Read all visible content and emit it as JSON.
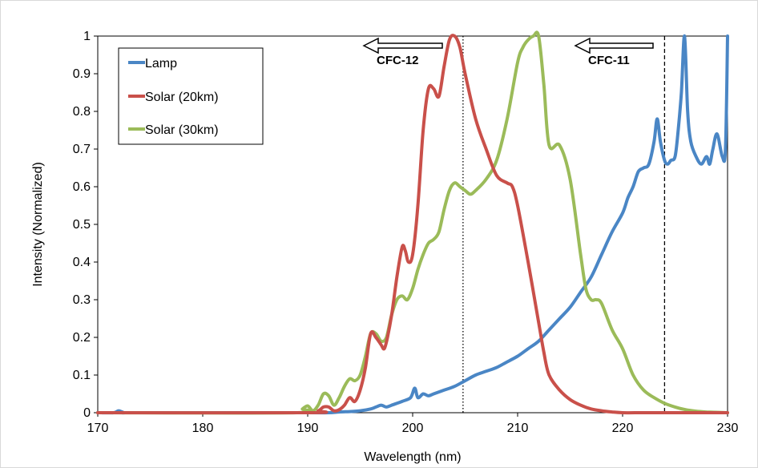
{
  "chart_data": {
    "type": "line",
    "xlabel": "Wavelength (nm)",
    "ylabel": "Intensity (Normalized)",
    "xlim": [
      170,
      230
    ],
    "ylim": [
      0,
      1
    ],
    "x_ticks": [
      "170",
      "180",
      "190",
      "200",
      "210",
      "220",
      "230"
    ],
    "y_ticks": [
      "0",
      "0.1",
      "0.2",
      "0.3",
      "0.4",
      "0.5",
      "0.6",
      "0.7",
      "0.8",
      "0.9",
      "1"
    ],
    "grid": false,
    "legend": "top-left",
    "series": [
      {
        "name": "Lamp",
        "color": "#4a86c5",
        "x": [
          170,
          171.5,
          172,
          172.5,
          173,
          180,
          190,
          192,
          193,
          194,
          195,
          196,
          196.5,
          197,
          197.5,
          198,
          199,
          199.8,
          200.2,
          200.5,
          201,
          201.5,
          202,
          203,
          204,
          205,
          206,
          207,
          208,
          209,
          210,
          211,
          212,
          213,
          214,
          215,
          216,
          217,
          218,
          219,
          220,
          220.5,
          221,
          221.5,
          222,
          222.5,
          223,
          223.3,
          223.6,
          224,
          224.3,
          224.6,
          225,
          225.3,
          225.6,
          225.9,
          226.2,
          226.5,
          227,
          227.5,
          228,
          228.3,
          228.6,
          229,
          229.5,
          229.8,
          230
        ],
        "values": [
          0,
          0,
          0.005,
          0,
          0,
          0,
          0,
          0,
          0.002,
          0.003,
          0.005,
          0.01,
          0.015,
          0.02,
          0.015,
          0.02,
          0.03,
          0.04,
          0.065,
          0.04,
          0.05,
          0.045,
          0.05,
          0.06,
          0.07,
          0.085,
          0.1,
          0.11,
          0.12,
          0.135,
          0.15,
          0.17,
          0.19,
          0.22,
          0.25,
          0.28,
          0.32,
          0.36,
          0.42,
          0.48,
          0.53,
          0.57,
          0.6,
          0.64,
          0.65,
          0.66,
          0.72,
          0.78,
          0.72,
          0.67,
          0.66,
          0.67,
          0.68,
          0.75,
          0.85,
          1.0,
          0.8,
          0.72,
          0.68,
          0.66,
          0.68,
          0.66,
          0.7,
          0.74,
          0.68,
          0.7,
          1.0
        ]
      },
      {
        "name": "Solar (20km)",
        "color": "#c9504a",
        "x": [
          170,
          190,
          191,
          191.5,
          192,
          192.5,
          193,
          193.5,
          194,
          194.5,
          195,
          195.5,
          196,
          196.5,
          197,
          197.3,
          197.6,
          198,
          198.5,
          199,
          199.3,
          199.6,
          200,
          200.5,
          201,
          201.5,
          202,
          202.5,
          203,
          203.5,
          204,
          204.5,
          205,
          206,
          207,
          208,
          209,
          209.5,
          210,
          211,
          212,
          212.5,
          213,
          214,
          215,
          216,
          217,
          218,
          219,
          220,
          222,
          225,
          230
        ],
        "values": [
          0,
          0,
          0.005,
          0.015,
          0.015,
          0.005,
          0.008,
          0.02,
          0.04,
          0.03,
          0.06,
          0.12,
          0.21,
          0.2,
          0.18,
          0.17,
          0.2,
          0.26,
          0.36,
          0.44,
          0.43,
          0.4,
          0.42,
          0.55,
          0.75,
          0.86,
          0.86,
          0.84,
          0.92,
          0.99,
          1.0,
          0.97,
          0.9,
          0.78,
          0.7,
          0.63,
          0.61,
          0.6,
          0.55,
          0.4,
          0.24,
          0.16,
          0.1,
          0.06,
          0.035,
          0.02,
          0.01,
          0.005,
          0.002,
          0,
          0,
          0,
          0
        ]
      },
      {
        "name": "Solar (30km)",
        "color": "#9bbb59",
        "x": [
          170,
          189,
          189.5,
          190,
          190.5,
          191,
          191.5,
          192,
          192.5,
          193,
          193.5,
          194,
          194.5,
          195,
          195.5,
          196,
          196.5,
          197,
          197.5,
          198,
          198.5,
          199,
          199.5,
          200,
          200.5,
          201,
          201.5,
          202,
          202.5,
          203,
          203.5,
          204,
          204.5,
          205,
          205.5,
          206,
          207,
          208,
          209,
          210,
          210.5,
          211,
          211.5,
          212,
          212.5,
          213,
          214,
          215,
          216,
          216.5,
          217,
          217.5,
          218,
          219,
          220,
          221,
          222,
          223,
          224,
          225,
          226,
          227,
          228,
          230
        ],
        "values": [
          0,
          0,
          0.01,
          0.018,
          0.005,
          0.02,
          0.05,
          0.045,
          0.02,
          0.04,
          0.07,
          0.09,
          0.085,
          0.1,
          0.15,
          0.21,
          0.21,
          0.19,
          0.2,
          0.26,
          0.3,
          0.31,
          0.3,
          0.33,
          0.38,
          0.42,
          0.45,
          0.46,
          0.48,
          0.54,
          0.59,
          0.61,
          0.6,
          0.59,
          0.58,
          0.59,
          0.62,
          0.67,
          0.78,
          0.93,
          0.97,
          0.99,
          1.0,
          1.0,
          0.87,
          0.71,
          0.71,
          0.62,
          0.42,
          0.33,
          0.3,
          0.3,
          0.29,
          0.22,
          0.17,
          0.1,
          0.06,
          0.04,
          0.025,
          0.015,
          0.008,
          0.004,
          0.002,
          0
        ]
      }
    ],
    "annotations": [
      {
        "label": "CFC-12",
        "x": 204.8,
        "line_style": "dotted"
      },
      {
        "label": "CFC-11",
        "x": 224,
        "line_style": "dashed"
      }
    ]
  }
}
